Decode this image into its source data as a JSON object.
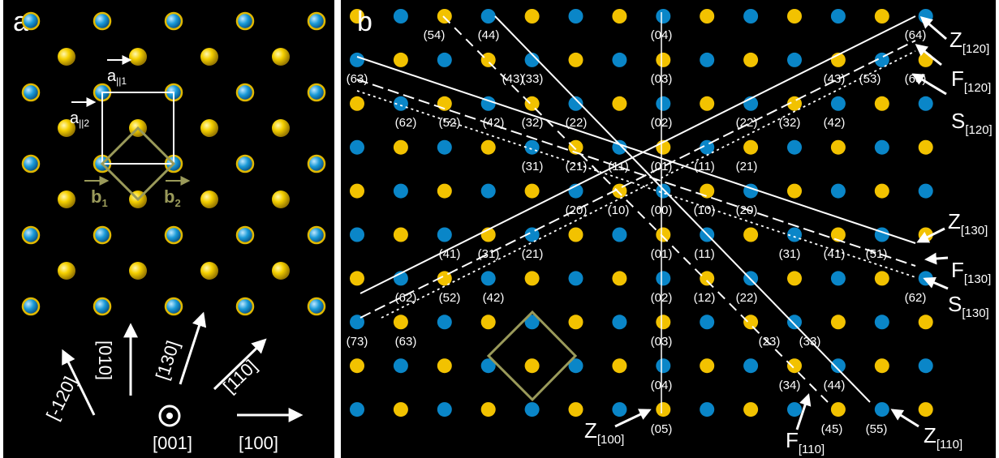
{
  "panel_a": {
    "label": "a",
    "vectors": {
      "a1": {
        "main": "a",
        "sub": "||1"
      },
      "a2": {
        "main": "a",
        "sub": "||2"
      },
      "b1": {
        "main": "b",
        "sub": "1"
      },
      "b2": {
        "main": "b",
        "sub": "2"
      }
    },
    "directions": {
      "d120": "[-120]",
      "d010": "[010]",
      "d130": "[130]",
      "d110": "[110]",
      "d001": "[001]",
      "d100": "[100]"
    }
  },
  "panel_b": {
    "label": "b",
    "line_labels": {
      "Z120": {
        "main": "Z",
        "sub": "[120]",
        "sub_bar": true
      },
      "F120": {
        "main": "F",
        "sub": "[120]",
        "sub_bar": true
      },
      "S120": {
        "main": "S",
        "sub": "[120]",
        "sub_bar": true
      },
      "Z130": {
        "main": "Z",
        "sub": "[130]"
      },
      "F130": {
        "main": "F",
        "sub": "[130]"
      },
      "S130": {
        "main": "S",
        "sub": "[130]"
      },
      "Z100": {
        "main": "Z",
        "sub": "[100]"
      },
      "F110": {
        "main": "F",
        "sub": "[110]"
      },
      "Z110": {
        "main": "Z",
        "sub": "[110]"
      }
    },
    "indices": [
      "(54)",
      "(44)",
      "(04)",
      "(64)",
      "(63)",
      "(43)",
      "(33)",
      "(03)",
      "(43)",
      "(53)",
      "(63)",
      "(62)",
      "(52)",
      "(42)",
      "(32)",
      "(22)",
      "(02)",
      "(22)",
      "(32)",
      "(42)",
      "(31)",
      "(21)",
      "(11)",
      "(01)",
      "(11)",
      "(21)",
      "(20)",
      "(10)",
      "(00)",
      "(10)",
      "(20)",
      "(41)",
      "(31)",
      "(21)",
      "(01)",
      "(11)",
      "(31)",
      "(41)",
      "(51)",
      "(62)",
      "(52)",
      "(42)",
      "(02)",
      "(12)",
      "(22)",
      "(62)",
      "(73)",
      "(63)",
      "(03)",
      "(23)",
      "(33)",
      "(04)",
      "(34)",
      "(44)",
      "(05)",
      "(45)",
      "(55)"
    ]
  },
  "colors": {
    "yellow": "#f2c200",
    "blue": "#0a86c8",
    "olive": "#9a9a5a",
    "white": "#ffffff"
  }
}
